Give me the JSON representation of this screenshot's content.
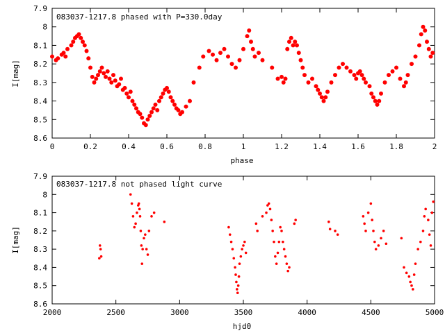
{
  "chart_data": [
    {
      "type": "scatter",
      "title": "083037-1217.8 phased with P=330.0day",
      "xlabel": "phase",
      "ylabel": "I[mag]",
      "xlim": [
        0,
        2
      ],
      "ylim": [
        8.6,
        7.9
      ],
      "y_reversed": true,
      "x_ticks": [
        "0",
        "0.2",
        "0.4",
        "0.6",
        "0.8",
        "1",
        "1.2",
        "1.4",
        "1.6",
        "1.8",
        "2"
      ],
      "y_ticks": [
        "7.9",
        "8",
        "8.1",
        "8.2",
        "8.3",
        "8.4",
        "8.5",
        "8.6"
      ],
      "marker": "filled-circle",
      "color": "#ff0000",
      "series": [
        {
          "x": [
            0.0,
            0.02,
            0.03,
            0.05,
            0.06,
            0.07,
            0.08,
            0.1,
            0.11,
            0.12,
            0.13,
            0.14,
            0.15,
            0.16,
            0.17,
            0.18,
            0.19,
            0.2,
            0.21,
            0.22,
            0.23,
            0.24,
            0.25,
            0.26,
            0.27,
            0.28,
            0.29,
            0.3,
            0.31,
            0.32,
            0.33,
            0.34,
            0.35,
            0.36,
            0.37,
            0.38,
            0.39,
            0.4,
            0.41,
            0.42,
            0.43,
            0.44,
            0.45,
            0.46,
            0.47,
            0.48,
            0.49,
            0.5,
            0.51,
            0.52,
            0.53,
            0.54,
            0.55,
            0.56,
            0.57,
            0.58,
            0.59,
            0.6,
            0.61,
            0.62,
            0.63,
            0.64,
            0.65,
            0.66,
            0.67,
            0.68,
            0.7,
            0.72,
            0.74,
            0.77,
            0.79,
            0.82,
            0.84,
            0.86,
            0.88,
            0.9,
            0.92,
            0.94,
            0.96,
            0.98,
            1.0,
            1.02,
            1.03,
            1.04,
            1.05,
            1.06,
            1.08,
            1.1,
            1.15,
            1.18,
            1.2,
            1.21,
            1.22,
            1.23,
            1.24,
            1.25,
            1.26,
            1.27,
            1.28,
            1.29,
            1.3,
            1.31,
            1.32,
            1.34,
            1.36,
            1.38,
            1.39,
            1.4,
            1.41,
            1.42,
            1.43,
            1.44,
            1.46,
            1.48,
            1.5,
            1.52,
            1.54,
            1.56,
            1.58,
            1.59,
            1.6,
            1.61,
            1.62,
            1.63,
            1.64,
            1.66,
            1.67,
            1.68,
            1.69,
            1.7,
            1.71,
            1.72,
            1.74,
            1.76,
            1.78,
            1.8,
            1.82,
            1.84,
            1.85,
            1.86,
            1.88,
            1.9,
            1.92,
            1.93,
            1.94,
            1.95,
            1.96,
            1.97,
            1.98,
            1.99
          ],
          "y": [
            8.16,
            8.18,
            8.17,
            8.15,
            8.14,
            8.16,
            8.12,
            8.1,
            8.08,
            8.06,
            8.05,
            8.04,
            8.06,
            8.08,
            8.1,
            8.13,
            8.17,
            8.22,
            8.27,
            8.3,
            8.28,
            8.26,
            8.24,
            8.22,
            8.25,
            8.27,
            8.24,
            8.28,
            8.3,
            8.26,
            8.29,
            8.32,
            8.31,
            8.28,
            8.34,
            8.33,
            8.36,
            8.38,
            8.35,
            8.4,
            8.42,
            8.44,
            8.46,
            8.47,
            8.49,
            8.52,
            8.53,
            8.5,
            8.48,
            8.46,
            8.44,
            8.42,
            8.45,
            8.4,
            8.38,
            8.36,
            8.34,
            8.33,
            8.35,
            8.38,
            8.4,
            8.42,
            8.44,
            8.45,
            8.47,
            8.46,
            8.43,
            8.4,
            8.3,
            8.22,
            8.16,
            8.13,
            8.15,
            8.18,
            8.14,
            8.12,
            8.16,
            8.2,
            8.22,
            8.18,
            8.12,
            8.05,
            8.02,
            8.08,
            8.12,
            8.16,
            8.14,
            8.18,
            8.22,
            8.28,
            8.27,
            8.3,
            8.28,
            8.12,
            8.08,
            8.06,
            8.1,
            8.08,
            8.1,
            8.14,
            8.18,
            8.22,
            8.26,
            8.3,
            8.28,
            8.32,
            8.34,
            8.36,
            8.38,
            8.4,
            8.38,
            8.35,
            8.3,
            8.26,
            8.22,
            8.2,
            8.22,
            8.24,
            8.26,
            8.28,
            8.25,
            8.24,
            8.26,
            8.28,
            8.3,
            8.32,
            8.36,
            8.38,
            8.4,
            8.42,
            8.4,
            8.36,
            8.3,
            8.26,
            8.24,
            8.22,
            8.28,
            8.32,
            8.3,
            8.26,
            8.2,
            8.16,
            8.1,
            8.04,
            8.0,
            8.02,
            8.08,
            8.12,
            8.16,
            8.14
          ]
        }
      ]
    },
    {
      "type": "scatter",
      "title": "083037-1217.8 not phased light curve",
      "xlabel": "hjd0",
      "ylabel": "I[mag]",
      "xlim": [
        2000,
        5000
      ],
      "ylim": [
        8.6,
        7.9
      ],
      "y_reversed": true,
      "x_ticks": [
        "2000",
        "2500",
        "3000",
        "3500",
        "4000",
        "4500",
        "5000"
      ],
      "y_ticks": [
        "7.9",
        "8",
        "8.1",
        "8.2",
        "8.3",
        "8.4",
        "8.5",
        "8.6"
      ],
      "marker": "filled-circle-small",
      "color": "#ff0000",
      "series": [
        {
          "x": [
            2370,
            2375,
            2380,
            2385,
            2615,
            2625,
            2635,
            2645,
            2655,
            2665,
            2675,
            2680,
            2685,
            2690,
            2695,
            2700,
            2705,
            2710,
            2720,
            2730,
            2740,
            2750,
            2760,
            2780,
            2800,
            2880,
            3385,
            3395,
            3405,
            3415,
            3425,
            3435,
            3440,
            3445,
            3450,
            3455,
            3460,
            3465,
            3470,
            3480,
            3490,
            3500,
            3510,
            3520,
            3600,
            3610,
            3650,
            3680,
            3690,
            3700,
            3710,
            3720,
            3730,
            3740,
            3750,
            3760,
            3770,
            3780,
            3790,
            3800,
            3810,
            3820,
            3830,
            3840,
            3850,
            3860,
            3900,
            3910,
            4170,
            4180,
            4220,
            4240,
            4440,
            4450,
            4460,
            4480,
            4500,
            4510,
            4520,
            4530,
            4540,
            4560,
            4580,
            4600,
            4620,
            4740,
            4760,
            4780,
            4800,
            4810,
            4820,
            4830,
            4840,
            4850,
            4870,
            4890,
            4910,
            4920,
            4930,
            4950,
            4960,
            4970,
            4980,
            4990
          ],
          "y": [
            8.35,
            8.28,
            8.3,
            8.34,
            8.0,
            8.05,
            8.12,
            8.18,
            8.16,
            8.1,
            8.06,
            8.05,
            8.08,
            8.12,
            8.2,
            8.28,
            8.38,
            8.3,
            8.24,
            8.22,
            8.3,
            8.33,
            8.2,
            8.12,
            8.1,
            8.15,
            8.18,
            8.22,
            8.26,
            8.3,
            8.35,
            8.4,
            8.44,
            8.48,
            8.52,
            8.54,
            8.5,
            8.45,
            8.38,
            8.34,
            8.3,
            8.28,
            8.26,
            8.32,
            8.16,
            8.2,
            8.12,
            8.1,
            8.06,
            8.05,
            8.08,
            8.14,
            8.2,
            8.26,
            8.34,
            8.38,
            8.32,
            8.26,
            8.18,
            8.2,
            8.26,
            8.3,
            8.34,
            8.38,
            8.42,
            8.4,
            8.16,
            8.14,
            8.15,
            8.19,
            8.2,
            8.22,
            8.12,
            8.16,
            8.2,
            8.1,
            8.05,
            8.14,
            8.2,
            8.26,
            8.3,
            8.28,
            8.24,
            8.2,
            8.27,
            8.24,
            8.4,
            8.43,
            8.45,
            8.48,
            8.5,
            8.52,
            8.44,
            8.38,
            8.3,
            8.26,
            8.2,
            8.12,
            8.08,
            8.14,
            8.22,
            8.28,
            8.1,
            8.04
          ]
        }
      ]
    }
  ]
}
